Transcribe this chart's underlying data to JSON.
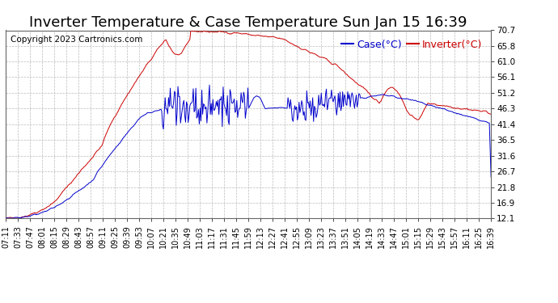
{
  "title": "Inverter Temperature & Case Temperature Sun Jan 15 16:39",
  "copyright": "Copyright 2023 Cartronics.com",
  "yticks": [
    12.1,
    16.9,
    21.8,
    26.7,
    31.6,
    36.5,
    41.4,
    46.3,
    51.2,
    56.1,
    61.0,
    65.8,
    70.7
  ],
  "ymin": 12.1,
  "ymax": 70.7,
  "inverter_color": "#cc0000",
  "case_color": "#0000cc",
  "background_color": "#ffffff",
  "grid_color": "#aaaaaa",
  "legend_case_label": "Case(°C)",
  "legend_inverter_label": "Inverter(°C)",
  "title_fontsize": 13,
  "copyright_fontsize": 7.5,
  "tick_fontsize": 7.5,
  "legend_fontsize": 9,
  "xtick_labels": [
    "07:11",
    "07:33",
    "07:47",
    "08:01",
    "08:15",
    "08:29",
    "08:43",
    "08:57",
    "09:11",
    "09:25",
    "09:39",
    "09:53",
    "10:07",
    "10:21",
    "10:35",
    "10:49",
    "11:03",
    "11:17",
    "11:31",
    "11:45",
    "11:59",
    "12:13",
    "12:27",
    "12:41",
    "12:55",
    "13:09",
    "13:23",
    "13:37",
    "13:51",
    "14:05",
    "14:19",
    "14:33",
    "14:47",
    "15:01",
    "15:15",
    "15:29",
    "15:43",
    "15:57",
    "16:11",
    "16:25",
    "16:39"
  ]
}
